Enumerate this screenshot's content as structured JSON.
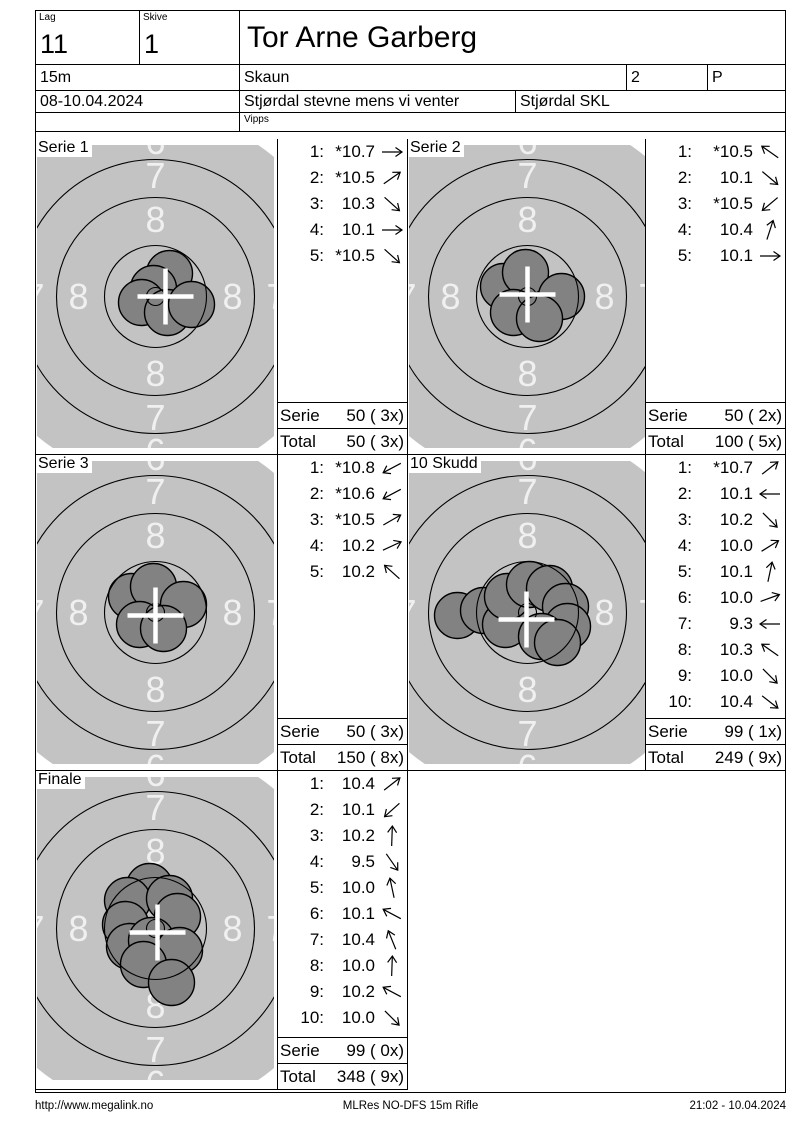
{
  "header": {
    "lag_label": "Lag",
    "lag_value": "11",
    "skive_label": "Skive",
    "skive_value": "1",
    "shooter_name": "Tor Arne Garberg",
    "distance": "15m",
    "club": "Skaun",
    "relay_col": "2",
    "class_col": "P",
    "date_range": "08-10.04.2024",
    "event_name": "Stjørdal stevne mens vi venter",
    "organizer": "Stjørdal SKL",
    "payment_note": "Vipps"
  },
  "footer": {
    "url": "http://www.megalink.no",
    "program": "MLRes NO-DFS 15m Rifle",
    "timestamp": "21:02 - 10.04.2024"
  },
  "colors": {
    "target_bg": "#c3c3c3",
    "hole_fill": "#828282",
    "ring_label": "#f0f0f0",
    "cross": "#ffffff",
    "line": "#000000"
  },
  "ring_numbers": [
    "6",
    "7",
    "8"
  ],
  "summary_labels": {
    "serie": "Serie",
    "total": "Total"
  },
  "targets": [
    {
      "title": "Serie 1",
      "shots": [
        {
          "n": "1:",
          "v": "*10.7",
          "dir": 0
        },
        {
          "n": "2:",
          "v": "*10.5",
          "dir": -35
        },
        {
          "n": "3:",
          "v": "10.3",
          "dir": 42
        },
        {
          "n": "4:",
          "v": "10.1",
          "dir": 0
        },
        {
          "n": "5:",
          "v": "*10.5",
          "dir": 42
        }
      ],
      "serie_value": "50 ( 3x)",
      "total_value": "50 ( 3x)",
      "holes": [
        [
          14,
          -23
        ],
        [
          -2,
          -8
        ],
        [
          -14,
          6
        ],
        [
          12,
          16
        ],
        [
          36,
          8
        ]
      ],
      "cross": [
        10,
        0
      ]
    },
    {
      "title": "Serie 2",
      "shots": [
        {
          "n": "1:",
          "v": "*10.5",
          "dir": -145
        },
        {
          "n": "2:",
          "v": "10.1",
          "dir": 40
        },
        {
          "n": "3:",
          "v": "*10.5",
          "dir": 140
        },
        {
          "n": "4:",
          "v": "10.4",
          "dir": -72
        },
        {
          "n": "5:",
          "v": "10.1",
          "dir": 0
        }
      ],
      "serie_value": "50 ( 2x)",
      "total_value": "100 ( 5x)",
      "holes": [
        [
          -24,
          -10
        ],
        [
          -2,
          -24
        ],
        [
          34,
          0
        ],
        [
          -14,
          16
        ],
        [
          12,
          22
        ]
      ],
      "cross": [
        0,
        -2
      ]
    },
    {
      "title": "Serie 3",
      "shots": [
        {
          "n": "1:",
          "v": "*10.8",
          "dir": 152
        },
        {
          "n": "2:",
          "v": "*10.6",
          "dir": 152
        },
        {
          "n": "3:",
          "v": "*10.5",
          "dir": -30
        },
        {
          "n": "4:",
          "v": "10.2",
          "dir": -25
        },
        {
          "n": "5:",
          "v": "10.2",
          "dir": -138
        }
      ],
      "serie_value": "50 ( 3x)",
      "total_value": "150 ( 8x)",
      "holes": [
        [
          -24,
          -16
        ],
        [
          -2,
          -26
        ],
        [
          28,
          -8
        ],
        [
          -16,
          12
        ],
        [
          8,
          16
        ]
      ],
      "cross": [
        0,
        3
      ]
    },
    {
      "title": "10 Skudd",
      "shots": [
        {
          "n": "1:",
          "v": "*10.7",
          "dir": -38
        },
        {
          "n": "2:",
          "v": "10.1",
          "dir": 180
        },
        {
          "n": "3:",
          "v": "10.2",
          "dir": 45
        },
        {
          "n": "4:",
          "v": "10.0",
          "dir": -32
        },
        {
          "n": "5:",
          "v": "10.1",
          "dir": -78
        },
        {
          "n": "6:",
          "v": "10.0",
          "dir": -20
        },
        {
          "n": "7:",
          "v": "9.3",
          "dir": 180
        },
        {
          "n": "8:",
          "v": "10.3",
          "dir": -145
        },
        {
          "n": "9:",
          "v": "10.0",
          "dir": 45
        },
        {
          "n": "10:",
          "v": "10.4",
          "dir": 38
        }
      ],
      "serie_value": "99 ( 1x)",
      "total_value": "249 ( 9x)",
      "holes": [
        [
          -70,
          3
        ],
        [
          -44,
          -2
        ],
        [
          -22,
          12
        ],
        [
          -20,
          -16
        ],
        [
          2,
          -28
        ],
        [
          22,
          -24
        ],
        [
          38,
          -6
        ],
        [
          40,
          14
        ],
        [
          14,
          24
        ],
        [
          30,
          30
        ]
      ],
      "cross": [
        -1,
        7
      ]
    },
    {
      "title": "Finale",
      "shots": [
        {
          "n": "1:",
          "v": "10.4",
          "dir": -38
        },
        {
          "n": "2:",
          "v": "10.1",
          "dir": 138
        },
        {
          "n": "3:",
          "v": "10.2",
          "dir": -88
        },
        {
          "n": "4:",
          "v": "9.5",
          "dir": 55
        },
        {
          "n": "5:",
          "v": "10.0",
          "dir": -102
        },
        {
          "n": "6:",
          "v": "10.1",
          "dir": -152
        },
        {
          "n": "7:",
          "v": "10.4",
          "dir": -112
        },
        {
          "n": "8:",
          "v": "10.0",
          "dir": -88
        },
        {
          "n": "9:",
          "v": "10.2",
          "dir": -152
        },
        {
          "n": "10:",
          "v": "10.0",
          "dir": 45
        }
      ],
      "serie_value": "99 ( 0x)",
      "total_value": "348 ( 9x)",
      "holes": [
        [
          -6,
          -42
        ],
        [
          -28,
          -28
        ],
        [
          14,
          -30
        ],
        [
          -30,
          -4
        ],
        [
          22,
          -12
        ],
        [
          -26,
          18
        ],
        [
          -4,
          12
        ],
        [
          24,
          22
        ],
        [
          -12,
          36
        ],
        [
          16,
          54
        ]
      ],
      "cross": [
        2,
        4
      ]
    }
  ]
}
